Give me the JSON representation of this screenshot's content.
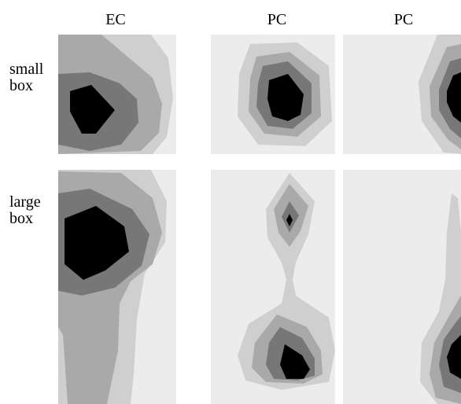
{
  "columns": [
    "EC",
    "PC",
    "PC"
  ],
  "rows": [
    "small\nbox",
    "large\nbox"
  ],
  "rows_lines": [
    [
      "small",
      "box"
    ],
    [
      "large",
      "box"
    ]
  ],
  "shades": [
    "#ececec",
    "#cfcfcf",
    "#a9a9a9",
    "#777777",
    "#000000"
  ]
}
